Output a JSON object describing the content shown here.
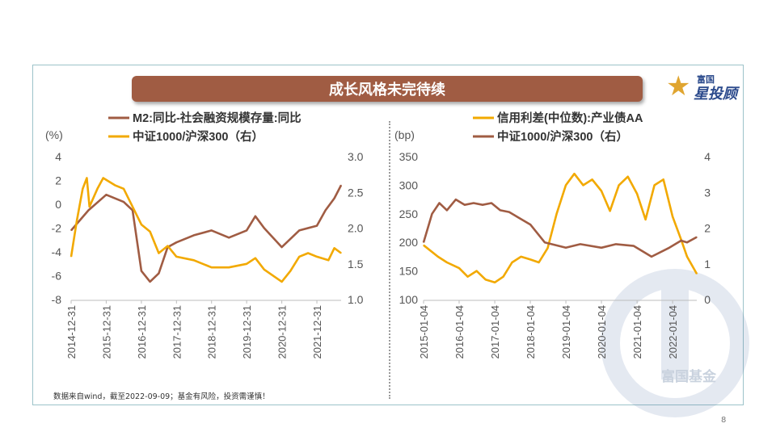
{
  "page": {
    "title": "成长风格未完待续",
    "footnote": "数据来自wind，截至2022-09-09；基金有风险，投资需谨慎！",
    "page_number": "8",
    "logo": {
      "top_text": "富国",
      "main_text": "星投顾",
      "icon": "star-icon"
    },
    "watermark": "富国基金"
  },
  "chart_data": [
    {
      "type": "line",
      "unit_left": "(%)",
      "series": [
        {
          "name": "M2:同比-社会融资规模存量:同比",
          "color": "#a05c43",
          "axis": "left",
          "x": [
            "2014-12-31",
            "2015-06-30",
            "2015-12-31",
            "2016-06-30",
            "2016-09-30",
            "2016-12-31",
            "2017-03-31",
            "2017-06-30",
            "2017-09-30",
            "2017-12-31",
            "2018-06-30",
            "2018-12-31",
            "2019-06-30",
            "2019-12-31",
            "2020-03-31",
            "2020-06-30",
            "2020-12-31",
            "2021-06-30",
            "2021-12-31",
            "2022-03-31",
            "2022-06-30",
            "2022-09-09"
          ],
          "values": [
            -2.2,
            -0.5,
            0.8,
            0.2,
            -0.5,
            -5.6,
            -6.5,
            -5.8,
            -3.6,
            -3.2,
            -2.6,
            -2.2,
            -2.8,
            -2.2,
            -1.0,
            -2.0,
            -3.6,
            -2.2,
            -1.8,
            -0.5,
            0.5,
            1.6
          ]
        },
        {
          "name": "中证1000/沪深300（右）",
          "color": "#f2a900",
          "axis": "right",
          "x": [
            "2014-12-31",
            "2015-02-28",
            "2015-04-30",
            "2015-06-12",
            "2015-07-10",
            "2015-09-30",
            "2015-11-30",
            "2016-03-31",
            "2016-06-30",
            "2016-12-31",
            "2017-03-31",
            "2017-06-30",
            "2017-09-30",
            "2017-12-31",
            "2018-06-30",
            "2018-12-31",
            "2019-06-30",
            "2019-12-31",
            "2020-03-31",
            "2020-06-30",
            "2020-12-31",
            "2021-03-31",
            "2021-06-30",
            "2021-09-30",
            "2021-12-31",
            "2022-04-30",
            "2022-06-30",
            "2022-09-09"
          ],
          "values": [
            1.6,
            2.1,
            2.55,
            2.7,
            2.3,
            2.55,
            2.7,
            2.6,
            2.55,
            2.05,
            1.95,
            1.65,
            1.75,
            1.6,
            1.55,
            1.45,
            1.45,
            1.5,
            1.58,
            1.42,
            1.25,
            1.4,
            1.6,
            1.65,
            1.6,
            1.55,
            1.72,
            1.65
          ]
        }
      ],
      "left_axis": {
        "min": -8,
        "max": 4,
        "ticks": [
          "4",
          "2",
          "0",
          "-2",
          "-4",
          "-6",
          "-8"
        ]
      },
      "right_axis": {
        "min": 1.0,
        "max": 3.0,
        "ticks": [
          "3.0",
          "2.5",
          "2.0",
          "1.5",
          "1.0"
        ]
      },
      "x_ticks": [
        "2014-12-31",
        "2015-12-31",
        "2016-12-31",
        "2017-12-31",
        "2018-12-31",
        "2019-12-31",
        "2020-12-31",
        "2021-12-31"
      ]
    },
    {
      "type": "line",
      "unit_left": "(bp)",
      "series": [
        {
          "name": "信用利差(中位数):产业债AA",
          "color": "#f2a900",
          "axis": "left",
          "x": [
            "2015-01-04",
            "2015-06-01",
            "2015-09-01",
            "2016-01-04",
            "2016-04-01",
            "2016-07-01",
            "2016-10-01",
            "2017-01-04",
            "2017-04-01",
            "2017-07-01",
            "2017-10-01",
            "2018-01-04",
            "2018-04-01",
            "2018-07-01",
            "2018-10-01",
            "2019-01-04",
            "2019-04-01",
            "2019-07-01",
            "2019-10-01",
            "2020-01-04",
            "2020-04-01",
            "2020-07-01",
            "2020-10-01",
            "2021-01-04",
            "2021-04-01",
            "2021-07-01",
            "2021-10-01",
            "2022-01-04",
            "2022-04-01",
            "2022-06-01",
            "2022-09-09"
          ],
          "values": [
            195,
            175,
            165,
            155,
            140,
            150,
            135,
            130,
            140,
            165,
            175,
            170,
            165,
            190,
            250,
            300,
            320,
            300,
            310,
            290,
            255,
            300,
            315,
            285,
            240,
            300,
            310,
            245,
            205,
            175,
            145
          ]
        },
        {
          "name": "中证1000/沪深300（右）",
          "color": "#a05c43",
          "axis": "right",
          "x": [
            "2015-01-04",
            "2015-04-01",
            "2015-06-15",
            "2015-09-01",
            "2015-12-01",
            "2016-03-01",
            "2016-06-01",
            "2016-09-01",
            "2016-12-01",
            "2017-03-01",
            "2017-06-01",
            "2017-09-01",
            "2018-01-04",
            "2018-06-01",
            "2019-01-04",
            "2019-06-01",
            "2020-01-04",
            "2020-06-01",
            "2020-12-01",
            "2021-06-01",
            "2021-12-01",
            "2022-04-01",
            "2022-06-01",
            "2022-09-09"
          ],
          "values": [
            1.6,
            2.4,
            2.7,
            2.5,
            2.8,
            2.65,
            2.7,
            2.65,
            2.7,
            2.5,
            2.45,
            2.3,
            2.1,
            1.6,
            1.45,
            1.55,
            1.45,
            1.55,
            1.5,
            1.2,
            1.45,
            1.65,
            1.6,
            1.75
          ]
        }
      ],
      "left_axis": {
        "min": 100,
        "max": 350,
        "ticks": [
          "350",
          "300",
          "250",
          "200",
          "150",
          "100"
        ]
      },
      "right_axis": {
        "min": 0,
        "max": 4,
        "ticks": [
          "4",
          "3",
          "2",
          "1",
          "0"
        ]
      },
      "x_ticks": [
        "2015-01-04",
        "2016-01-04",
        "2017-01-04",
        "2018-01-04",
        "2019-01-04",
        "2020-01-04",
        "2021-01-04",
        "2022-01-04"
      ]
    }
  ]
}
